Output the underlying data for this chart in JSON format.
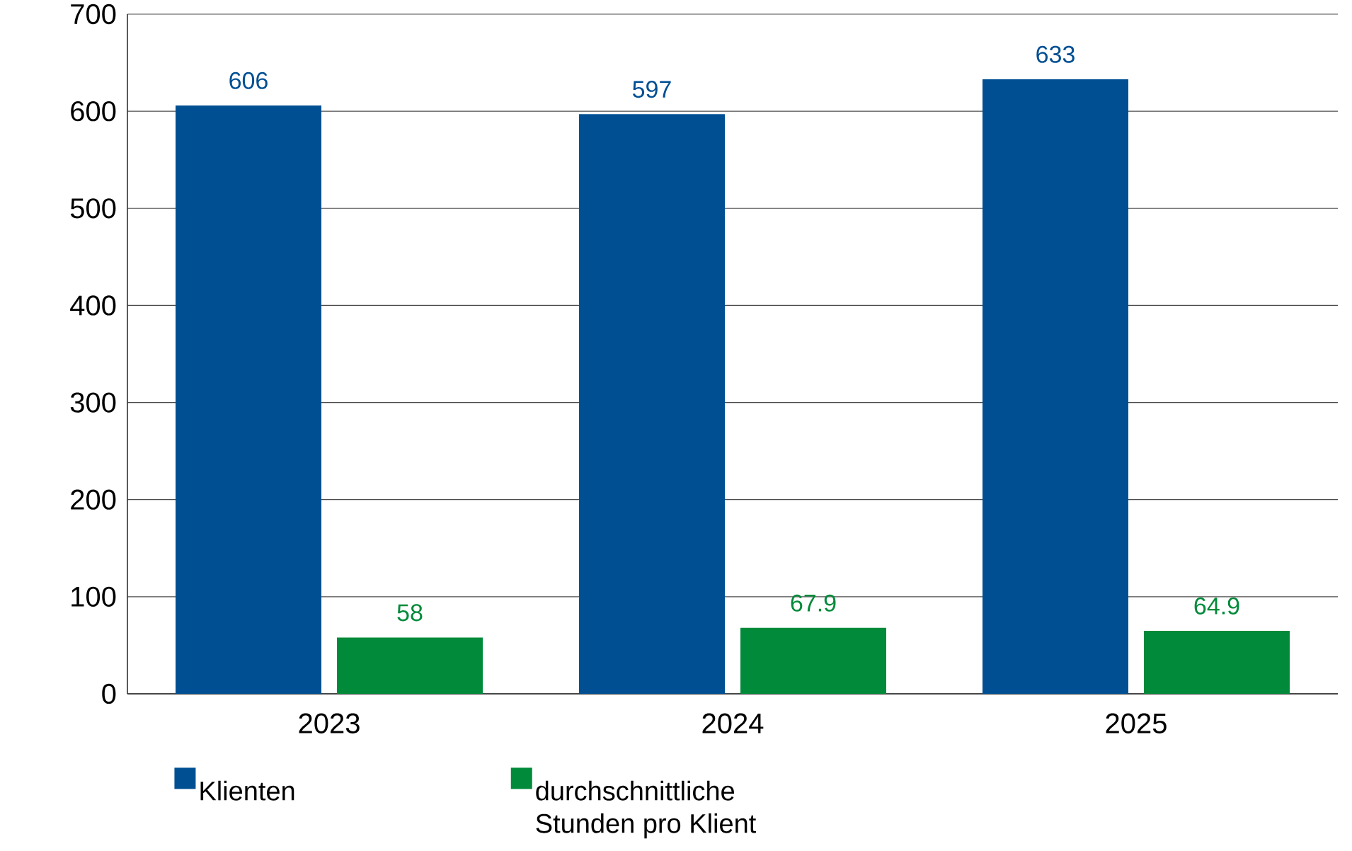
{
  "chart_data": {
    "type": "bar",
    "categories": [
      "2023",
      "2024",
      "2025"
    ],
    "series": [
      {
        "name": "Klienten",
        "color": "#004f93",
        "values": [
          606,
          597,
          633
        ]
      },
      {
        "name": "durchschnittliche Stunden pro Klient",
        "color": "#008a3a",
        "values": [
          58,
          67.9,
          64.9
        ]
      }
    ],
    "ylim": [
      0,
      700
    ],
    "yticks": [
      0,
      100,
      200,
      300,
      400,
      500,
      600,
      700
    ],
    "grid": "y",
    "legend": "bottom",
    "data_labels": true
  }
}
